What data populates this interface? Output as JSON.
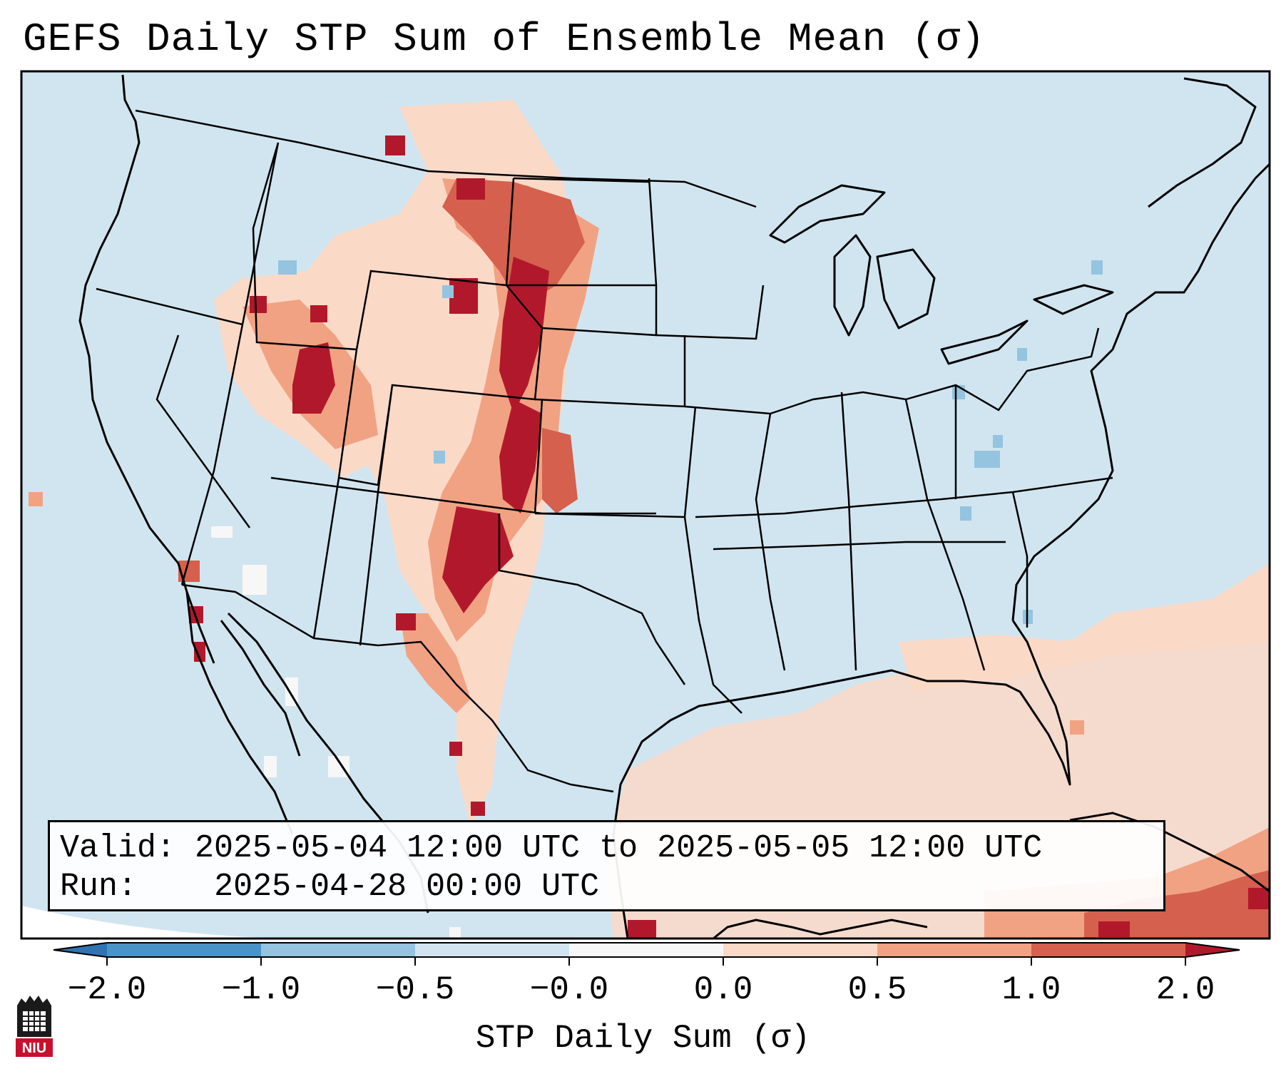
{
  "title": "GEFS Daily STP Sum of Ensemble Mean (σ)",
  "info": {
    "valid_label": "Valid:",
    "valid_text": "2025-05-04 12:00 UTC to 2025-05-05 12:00 UTC",
    "run_label": "Run:",
    "run_text": "2025-04-28 00:00 UTC"
  },
  "colorbar": {
    "label": "STP Daily Sum (σ)",
    "ticks": [
      "−2.0",
      "−1.0",
      "−0.5",
      "−0.0",
      "0.0",
      "0.5",
      "1.0",
      "2.0"
    ],
    "bin_colors": [
      "#2f73b3",
      "#4a93c9",
      "#94c4df",
      "#d2e5f0",
      "#f7f7f7",
      "#fbd9c7",
      "#f1a283",
      "#d4604d",
      "#b2182b"
    ]
  },
  "map": {
    "background_color": "#d1e5f0",
    "stp_anomaly_fields": [
      {
        "region": "montana-north-dakota",
        "value": 2.0
      },
      {
        "region": "wyoming-south-dakota",
        "value": 1.5
      },
      {
        "region": "utah-colorado",
        "value": 1.2
      },
      {
        "region": "new-mexico-east",
        "value": 2.0
      },
      {
        "region": "kansas-oklahoma-west",
        "value": 1.0
      },
      {
        "region": "gulf-of-mexico",
        "value": 0.3
      },
      {
        "region": "florida-straits-cuba",
        "value": 1.5
      },
      {
        "region": "baja-california",
        "value": -0.2
      },
      {
        "region": "ohio-valley",
        "value": -0.8
      }
    ]
  },
  "logo": {
    "text": "NIU"
  }
}
